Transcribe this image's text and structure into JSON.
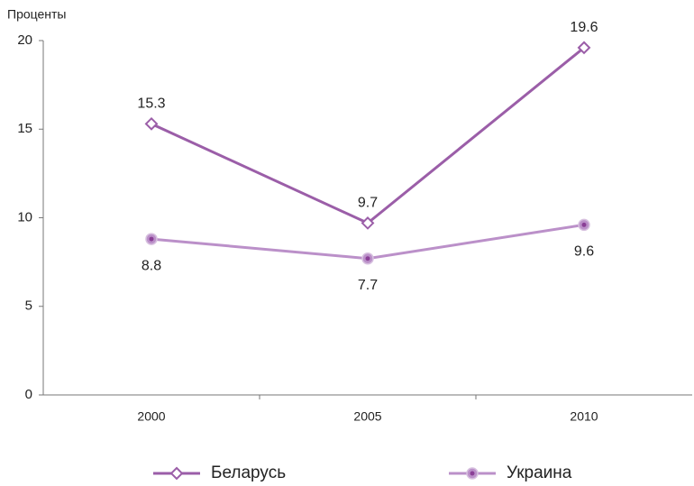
{
  "chart_data": {
    "type": "line",
    "y_label": "Проценты",
    "categories": [
      "2000",
      "2005",
      "2010"
    ],
    "series": [
      {
        "name": "Беларусь",
        "color": "#9b5ea8",
        "marker": "diamond",
        "label_position": "above",
        "values": [
          15.3,
          9.7,
          19.6
        ]
      },
      {
        "name": "Украина",
        "color": "#bb90c9",
        "marker": "circle",
        "label_position": "below",
        "values": [
          8.8,
          7.7,
          9.6
        ]
      }
    ],
    "ylim": [
      0,
      20
    ],
    "yticks": [
      0,
      5,
      10,
      15,
      20
    ],
    "grid": false,
    "legend": "bottom"
  }
}
